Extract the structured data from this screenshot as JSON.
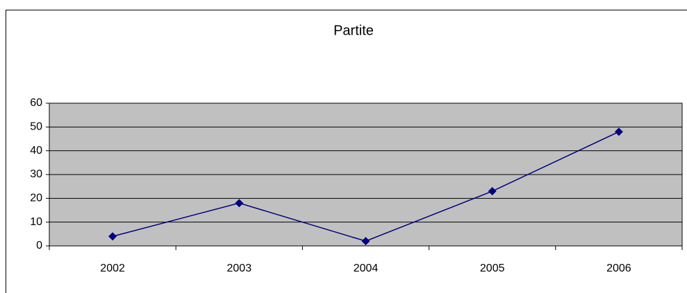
{
  "chart_data": {
    "type": "line",
    "title": "Partite",
    "categories": [
      "2002",
      "2003",
      "2004",
      "2005",
      "2006"
    ],
    "series": [
      {
        "name": "Partite",
        "color": "#000080",
        "values": [
          4,
          18,
          2,
          23,
          48
        ]
      }
    ],
    "ylim": [
      0,
      60
    ],
    "yticks": [
      0,
      10,
      20,
      30,
      40,
      50,
      60
    ],
    "grid": true,
    "plot_background": "#c0c0c0"
  }
}
